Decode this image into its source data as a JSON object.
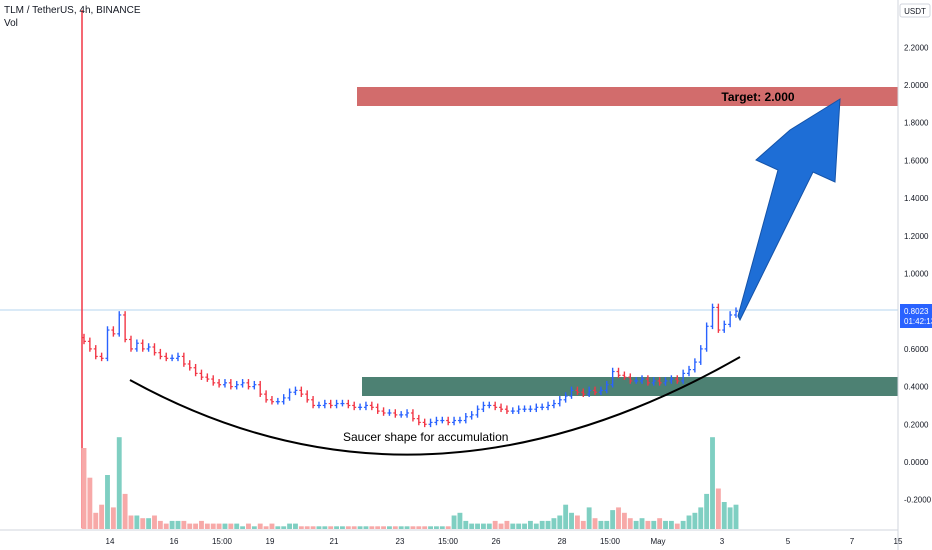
{
  "header": {
    "symbol_line": "TLM / TetherUS, 4h, BINANCE",
    "volume_label": "Vol"
  },
  "price_axis": {
    "unit_label": "USDT",
    "tick_labels": [
      "2.2000",
      "2.0000",
      "1.8000",
      "1.6000",
      "1.4000",
      "1.2000",
      "1.0000",
      "0.8000",
      "0.6000",
      "0.4000",
      "0.2000",
      "0.0000",
      "-0.2000"
    ],
    "current_price": "0.8023",
    "countdown": "01:42:13"
  },
  "time_axis": {
    "labels": [
      "14",
      "16",
      "15:00",
      "19",
      "21",
      "23",
      "15:00",
      "26",
      "28",
      "15:00",
      "May",
      "3",
      "5",
      "7",
      "15"
    ]
  },
  "annotations": {
    "target_label": "Target: 2.000",
    "saucer_label": "Saucer shape for accumulation"
  },
  "colors": {
    "up": "#2962ff",
    "down": "#f23645",
    "target_zone": "#cd5c5c",
    "support_zone": "#2e6b5a",
    "arrow": "#1e6ed6",
    "vol_up": "#7fcfc2",
    "vol_down": "#f7a9a8"
  },
  "chart_data": {
    "type": "candlestick",
    "title": "TLM / TetherUS, 4h, BINANCE",
    "ylabel": "USDT",
    "ylim": [
      -0.24,
      2.4
    ],
    "target_zone": [
      1.9,
      2.0
    ],
    "support_zone": [
      0.35,
      0.45
    ],
    "last_price": 0.8023,
    "series": [
      {
        "name": "Price",
        "close": [
          0.64,
          0.6,
          0.56,
          0.55,
          0.7,
          0.68,
          0.78,
          0.65,
          0.6,
          0.63,
          0.6,
          0.61,
          0.58,
          0.56,
          0.55,
          0.55,
          0.56,
          0.52,
          0.5,
          0.47,
          0.45,
          0.44,
          0.42,
          0.41,
          0.42,
          0.4,
          0.41,
          0.42,
          0.4,
          0.41,
          0.36,
          0.33,
          0.32,
          0.32,
          0.34,
          0.37,
          0.38,
          0.36,
          0.33,
          0.3,
          0.3,
          0.31,
          0.3,
          0.31,
          0.31,
          0.3,
          0.29,
          0.29,
          0.3,
          0.29,
          0.27,
          0.26,
          0.26,
          0.25,
          0.25,
          0.26,
          0.23,
          0.21,
          0.2,
          0.21,
          0.22,
          0.22,
          0.21,
          0.22,
          0.22,
          0.24,
          0.25,
          0.28,
          0.3,
          0.3,
          0.29,
          0.28,
          0.27,
          0.27,
          0.28,
          0.28,
          0.28,
          0.29,
          0.29,
          0.3,
          0.31,
          0.33,
          0.35,
          0.38,
          0.37,
          0.36,
          0.38,
          0.37,
          0.38,
          0.41,
          0.48,
          0.46,
          0.45,
          0.43,
          0.43,
          0.44,
          0.42,
          0.43,
          0.42,
          0.43,
          0.44,
          0.43,
          0.47,
          0.49,
          0.53,
          0.6,
          0.72,
          0.82,
          0.7,
          0.73,
          0.78,
          0.8
        ]
      },
      {
        "name": "Vol",
        "values": [
          0.3,
          0.19,
          0.06,
          0.09,
          0.2,
          0.08,
          0.34,
          0.13,
          0.05,
          0.05,
          0.04,
          0.04,
          0.05,
          0.03,
          0.02,
          0.03,
          0.03,
          0.03,
          0.02,
          0.02,
          0.03,
          0.02,
          0.02,
          0.02,
          0.02,
          0.02,
          0.02,
          0.01,
          0.02,
          0.01,
          0.02,
          0.01,
          0.02,
          0.01,
          0.01,
          0.02,
          0.02,
          0.01,
          0.01,
          0.01,
          0.01,
          0.01,
          0.01,
          0.01,
          0.01,
          0.01,
          0.01,
          0.01,
          0.01,
          0.01,
          0.01,
          0.01,
          0.01,
          0.01,
          0.01,
          0.01,
          0.01,
          0.01,
          0.01,
          0.01,
          0.01,
          0.01,
          0.01,
          0.05,
          0.06,
          0.03,
          0.02,
          0.02,
          0.02,
          0.02,
          0.03,
          0.02,
          0.03,
          0.02,
          0.02,
          0.02,
          0.03,
          0.02,
          0.03,
          0.03,
          0.04,
          0.05,
          0.09,
          0.06,
          0.05,
          0.03,
          0.08,
          0.04,
          0.03,
          0.03,
          0.07,
          0.08,
          0.06,
          0.04,
          0.03,
          0.04,
          0.03,
          0.03,
          0.04,
          0.03,
          0.03,
          0.02,
          0.03,
          0.05,
          0.06,
          0.08,
          0.13,
          0.34,
          0.15,
          0.1,
          0.08,
          0.09
        ]
      }
    ]
  }
}
